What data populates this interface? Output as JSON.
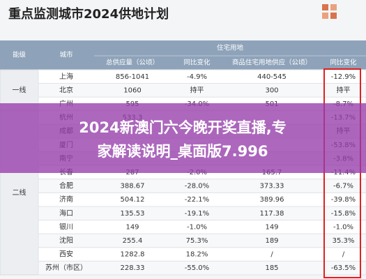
{
  "header": {
    "title": "重点监测城市2024供地计划"
  },
  "table": {
    "columns": [
      "能级",
      "城市"
    ],
    "group": "住宅用地",
    "subcolumns": [
      "总供应量（公顷）",
      "同比变化",
      "商品住宅用地供应（公顷）",
      "同比变化"
    ],
    "tiers": [
      {
        "label": "一线",
        "rows": [
          [
            "上海",
            "856-1041",
            "-4.9%",
            "440-545",
            "-12.9%"
          ],
          [
            "北京",
            "1060",
            "持平",
            "300",
            "持平"
          ],
          [
            "广州",
            "595",
            "-34.0%",
            "501",
            "-8.7%"
          ]
        ]
      },
      {
        "label": "二线",
        "rows": [
          [
            "杭州",
            "533.3",
            null,
            null,
            "-13.7%"
          ],
          [
            "成都",
            null,
            null,
            null,
            "持平"
          ],
          [
            "厦门",
            null,
            null,
            null,
            "-53.8%"
          ],
          [
            "南宁",
            null,
            null,
            null,
            "-3.8%"
          ],
          [
            "长春",
            "287",
            "-2.0%",
            "165.7",
            "-11.4%"
          ],
          [
            "合肥",
            "388.67",
            "-28.0%",
            "373.33",
            "-6.7%"
          ],
          [
            "济南",
            "504.12",
            "-22.1%",
            "389.96",
            "-39.8%"
          ],
          [
            "海口",
            "135.53",
            "-19.1%",
            "117.38",
            "-15.8%"
          ],
          [
            "银川",
            "149",
            "-1.0%",
            "149",
            "-1.0%"
          ],
          [
            "沈阳",
            "255.4",
            "75.3%",
            "189",
            "35.3%"
          ],
          [
            "西安",
            "1282.8",
            "18.2%",
            "/",
            "/"
          ],
          [
            "苏州（市区）",
            "228.33",
            "-55.0%",
            "185",
            "-63.5%"
          ]
        ]
      }
    ]
  },
  "banner": {
    "lines": [
      "2024新澳门六今晚开奖直播,专",
      "家解读说明_桌面版7.996"
    ]
  }
}
